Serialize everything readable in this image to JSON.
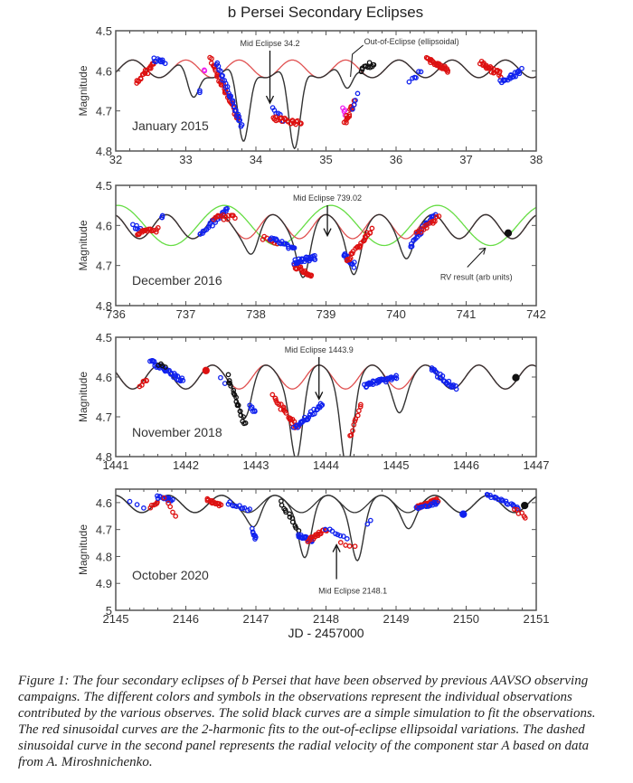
{
  "figure_title": "b Persei Secondary Eclipses",
  "caption": "Figure 1: The four secondary eclipses of b Persei that have been observed by previous AAVSO observing campaigns.  The different colors and symbols in the observations represent the individual observations contributed by the various observes.  The solid black curves are a simple simulation to fit the observations.  The red sinusoidal curves are the 2-harmonic fits to the out-of-eclipse ellipsoidal variations.  The dashed sinusoidal curve in the second panel represents the radial velocity of the component star A based on data from A. Miroshnichenko.",
  "colors": {
    "sim": "#333333",
    "ellip": "#e05050",
    "rv": "#66dd44",
    "obs_red": "#dd1111",
    "obs_blue": "#1122ee",
    "obs_black": "#111111",
    "obs_magenta": "#ee22ee"
  },
  "chart_data": [
    {
      "type": "scatter",
      "panel_label": "January 2015",
      "ylabel": "Magnitude",
      "xlim": [
        32,
        38
      ],
      "ylim": [
        4.5,
        4.8
      ],
      "y_inverted": true,
      "xticks": [
        "32",
        "33",
        "34",
        "35",
        "36",
        "37",
        "38"
      ],
      "yticks": [
        "4.5",
        "4.6",
        "4.7",
        "4.8"
      ],
      "mid_eclipse": {
        "label": "Mid Eclipse 34.2",
        "x": 34.2,
        "y": 4.685
      },
      "annotation": {
        "label": "Out-of-Eclipse (ellipsoidal)",
        "x": 35.35,
        "y": 4.615
      },
      "ellip": {
        "center": 4.595,
        "amp": 0.022,
        "period": 0.76,
        "phase0": 33.0
      },
      "sim_dips": [
        {
          "x": 33.1,
          "depth": 0.085
        },
        {
          "x": 33.82,
          "depth": 0.2
        },
        {
          "x": 34.55,
          "depth": 0.22
        },
        {
          "x": 35.3,
          "depth": 0.07
        }
      ],
      "observations": [
        {
          "color": "obs_red",
          "x0": 32.3,
          "x1": 32.55,
          "y0": 4.63,
          "y1": 4.58,
          "n": 20
        },
        {
          "color": "obs_blue",
          "x0": 32.55,
          "x1": 32.7,
          "y0": 4.57,
          "y1": 4.58,
          "n": 10
        },
        {
          "color": "obs_magenta",
          "x0": 33.25,
          "x1": 33.27,
          "y0": 4.6,
          "y1": 4.6,
          "n": 2
        },
        {
          "color": "obs_blue",
          "x0": 33.2,
          "x1": 33.2,
          "y0": 4.65,
          "y1": 4.65,
          "n": 2
        },
        {
          "color": "obs_red",
          "x0": 33.35,
          "x1": 33.75,
          "y0": 4.57,
          "y1": 4.72,
          "n": 40
        },
        {
          "color": "obs_blue",
          "x0": 33.45,
          "x1": 33.8,
          "y0": 4.58,
          "y1": 4.74,
          "n": 30
        },
        {
          "color": "obs_blue",
          "x0": 34.25,
          "x1": 34.4,
          "y0": 4.69,
          "y1": 4.73,
          "n": 8
        },
        {
          "color": "obs_red",
          "x0": 34.25,
          "x1": 34.65,
          "y0": 4.72,
          "y1": 4.73,
          "n": 25
        },
        {
          "color": "obs_magenta",
          "x0": 35.25,
          "x1": 35.27,
          "y0": 4.69,
          "y1": 4.71,
          "n": 4
        },
        {
          "color": "obs_red",
          "x0": 35.27,
          "x1": 35.4,
          "y0": 4.73,
          "y1": 4.68,
          "n": 15
        },
        {
          "color": "obs_blue",
          "x0": 35.38,
          "x1": 35.45,
          "y0": 4.7,
          "y1": 4.66,
          "n": 4
        },
        {
          "color": "obs_black",
          "x0": 35.5,
          "x1": 35.68,
          "y0": 4.6,
          "y1": 4.58,
          "n": 12
        },
        {
          "color": "obs_blue",
          "x0": 36.2,
          "x1": 36.35,
          "y0": 4.63,
          "y1": 4.6,
          "n": 6
        },
        {
          "color": "obs_red",
          "x0": 36.45,
          "x1": 36.75,
          "y0": 4.57,
          "y1": 4.6,
          "n": 30
        },
        {
          "color": "obs_red",
          "x0": 37.2,
          "x1": 37.5,
          "y0": 4.58,
          "y1": 4.61,
          "n": 25
        },
        {
          "color": "obs_blue",
          "x0": 37.5,
          "x1": 37.78,
          "y0": 4.63,
          "y1": 4.6,
          "n": 20
        }
      ]
    },
    {
      "type": "scatter",
      "panel_label": "December 2016",
      "ylabel": "Magnitude",
      "xlim": [
        736,
        742
      ],
      "ylim": [
        4.5,
        4.8
      ],
      "y_inverted": true,
      "xticks": [
        "736",
        "737",
        "738",
        "739",
        "740",
        "741",
        "742"
      ],
      "yticks": [
        "4.5",
        "4.6",
        "4.7",
        "4.8"
      ],
      "mid_eclipse": {
        "label": "Mid Eclipse 739.02",
        "x": 739.02,
        "y": 4.63
      },
      "annotation": {
        "label": "RV result (arb units)",
        "x": 741.3,
        "y": 4.65
      },
      "ellip": {
        "center": 4.603,
        "amp": 0.03,
        "period": 0.76,
        "phase0": 736.72
      },
      "rv": {
        "center": 4.6,
        "amp": 0.05,
        "period": 1.52,
        "phase0": 737.55
      },
      "sim_dips": [
        {
          "x": 737.95,
          "depth": 0.045
        },
        {
          "x": 738.68,
          "depth": 0.1
        },
        {
          "x": 739.4,
          "depth": 0.09
        },
        {
          "x": 740.15,
          "depth": 0.05
        }
      ],
      "observations": [
        {
          "color": "obs_blue",
          "x0": 736.25,
          "x1": 736.35,
          "y0": 4.6,
          "y1": 4.61,
          "n": 6
        },
        {
          "color": "obs_red",
          "x0": 736.3,
          "x1": 736.6,
          "y0": 4.62,
          "y1": 4.61,
          "n": 20
        },
        {
          "color": "obs_blue",
          "x0": 736.65,
          "x1": 736.68,
          "y0": 4.58,
          "y1": 4.58,
          "n": 3
        },
        {
          "color": "obs_blue",
          "x0": 737.2,
          "x1": 737.6,
          "y0": 4.62,
          "y1": 4.56,
          "n": 25
        },
        {
          "color": "obs_red",
          "x0": 737.4,
          "x1": 737.7,
          "y0": 4.58,
          "y1": 4.58,
          "n": 15
        },
        {
          "color": "obs_red",
          "x0": 738.1,
          "x1": 738.3,
          "y0": 4.63,
          "y1": 4.64,
          "n": 8
        },
        {
          "color": "obs_blue",
          "x0": 738.2,
          "x1": 738.55,
          "y0": 4.63,
          "y1": 4.66,
          "n": 20
        },
        {
          "color": "obs_red",
          "x0": 738.55,
          "x1": 738.8,
          "y0": 4.7,
          "y1": 4.73,
          "n": 20
        },
        {
          "color": "obs_blue",
          "x0": 738.55,
          "x1": 738.85,
          "y0": 4.69,
          "y1": 4.68,
          "n": 30
        },
        {
          "color": "obs_blue",
          "x0": 739.25,
          "x1": 739.4,
          "y0": 4.67,
          "y1": 4.7,
          "n": 15
        },
        {
          "color": "obs_red",
          "x0": 739.3,
          "x1": 739.65,
          "y0": 4.69,
          "y1": 4.61,
          "n": 25
        },
        {
          "color": "obs_blue",
          "x0": 740.2,
          "x1": 740.55,
          "y0": 4.65,
          "y1": 4.57,
          "n": 25
        },
        {
          "color": "obs_red",
          "x0": 740.3,
          "x1": 740.6,
          "y0": 4.62,
          "y1": 4.58,
          "n": 15
        },
        {
          "color": "obs_black",
          "x0": 741.6,
          "x1": 741.6,
          "y0": 4.625,
          "y1": 4.625,
          "n": 1
        }
      ]
    },
    {
      "type": "scatter",
      "panel_label": "November 2018",
      "ylabel": "Magnitude",
      "xlim": [
        1441,
        1447
      ],
      "ylim": [
        4.5,
        4.8
      ],
      "y_inverted": true,
      "xticks": [
        "1441",
        "1442",
        "1443",
        "1444",
        "1445",
        "1446",
        "1447"
      ],
      "yticks": [
        "4.5",
        "4.6",
        "4.7",
        "4.8"
      ],
      "mid_eclipse": {
        "label": "Mid Eclipse 1443.9",
        "x": 1443.9,
        "y": 4.66
      },
      "ellip": {
        "center": 4.6,
        "amp": 0.03,
        "period": 0.76,
        "phase0": 1441.62
      },
      "sim_dips": [
        {
          "x": 1442.85,
          "depth": 0.08
        },
        {
          "x": 1443.58,
          "depth": 0.18
        },
        {
          "x": 1444.3,
          "depth": 0.2
        },
        {
          "x": 1445.05,
          "depth": 0.06
        }
      ],
      "observations": [
        {
          "color": "obs_red",
          "x0": 1441.35,
          "x1": 1441.45,
          "y0": 4.62,
          "y1": 4.61,
          "n": 6
        },
        {
          "color": "obs_blue",
          "x0": 1441.5,
          "x1": 1441.95,
          "y0": 4.56,
          "y1": 4.61,
          "n": 35
        },
        {
          "color": "obs_black",
          "x0": 1441.6,
          "x1": 1441.7,
          "y0": 4.57,
          "y1": 4.57,
          "n": 4
        },
        {
          "color": "obs_red",
          "x0": 1442.3,
          "x1": 1442.3,
          "y0": 4.58,
          "y1": 4.58,
          "n": 1
        },
        {
          "color": "obs_blue",
          "x0": 1442.5,
          "x1": 1442.55,
          "y0": 4.6,
          "y1": 4.62,
          "n": 2
        },
        {
          "color": "obs_black",
          "x0": 1442.6,
          "x1": 1442.85,
          "y0": 4.6,
          "y1": 4.72,
          "n": 20
        },
        {
          "color": "obs_blue",
          "x0": 1442.92,
          "x1": 1443.0,
          "y0": 4.67,
          "y1": 4.69,
          "n": 6
        },
        {
          "color": "obs_red",
          "x0": 1443.25,
          "x1": 1443.6,
          "y0": 4.65,
          "y1": 4.73,
          "n": 25
        },
        {
          "color": "obs_blue",
          "x0": 1443.55,
          "x1": 1443.95,
          "y0": 4.73,
          "y1": 4.67,
          "n": 30
        },
        {
          "color": "obs_red",
          "x0": 1444.35,
          "x1": 1444.5,
          "y0": 4.75,
          "y1": 4.67,
          "n": 10
        },
        {
          "color": "obs_blue",
          "x0": 1444.55,
          "x1": 1445.0,
          "y0": 4.62,
          "y1": 4.6,
          "n": 35
        },
        {
          "color": "obs_blue",
          "x0": 1445.5,
          "x1": 1445.85,
          "y0": 4.58,
          "y1": 4.63,
          "n": 25
        },
        {
          "color": "obs_black",
          "x0": 1446.72,
          "x1": 1446.72,
          "y0": 4.605,
          "y1": 4.605,
          "n": 1
        }
      ]
    },
    {
      "type": "scatter",
      "panel_label": "October 2020",
      "ylabel": "Magnitude",
      "xlabel": "JD - 2457000",
      "xlim": [
        2145,
        2151
      ],
      "ylim": [
        4.55,
        5.0
      ],
      "y_inverted": true,
      "xticks": [
        "2145",
        "2146",
        "2147",
        "2148",
        "2149",
        "2150",
        "2151"
      ],
      "yticks": [
        "4.6",
        "4.7",
        "4.8",
        "4.9",
        "5"
      ],
      "mid_eclipse": {
        "label": "Mid Eclipse 2148.1",
        "x": 2148.15,
        "y": 4.75
      },
      "ellip": {
        "center": 4.605,
        "amp": 0.032,
        "period": 0.76,
        "phase0": 2145.75
      },
      "sim_dips": [
        {
          "x": 2146.98,
          "depth": 0.06
        },
        {
          "x": 2147.7,
          "depth": 0.17
        },
        {
          "x": 2148.45,
          "depth": 0.18
        },
        {
          "x": 2149.18,
          "depth": 0.06
        }
      ],
      "observations": [
        {
          "color": "obs_blue",
          "x0": 2145.2,
          "x1": 2145.4,
          "y0": 4.6,
          "y1": 4.62,
          "n": 3
        },
        {
          "color": "obs_red",
          "x0": 2145.5,
          "x1": 2145.6,
          "y0": 4.62,
          "y1": 4.6,
          "n": 6
        },
        {
          "color": "obs_blue",
          "x0": 2145.6,
          "x1": 2145.8,
          "y0": 4.58,
          "y1": 4.59,
          "n": 15
        },
        {
          "color": "obs_red",
          "x0": 2145.7,
          "x1": 2145.85,
          "y0": 4.58,
          "y1": 4.65,
          "n": 5
        },
        {
          "color": "obs_red",
          "x0": 2146.3,
          "x1": 2146.5,
          "y0": 4.59,
          "y1": 4.61,
          "n": 15
        },
        {
          "color": "obs_blue",
          "x0": 2146.6,
          "x1": 2146.9,
          "y0": 4.6,
          "y1": 4.63,
          "n": 12
        },
        {
          "color": "obs_blue",
          "x0": 2146.95,
          "x1": 2147.0,
          "y0": 4.7,
          "y1": 4.74,
          "n": 8
        },
        {
          "color": "obs_black",
          "x0": 2147.35,
          "x1": 2147.6,
          "y0": 4.6,
          "y1": 4.7,
          "n": 12
        },
        {
          "color": "obs_blue",
          "x0": 2147.6,
          "x1": 2147.8,
          "y0": 4.72,
          "y1": 4.74,
          "n": 20
        },
        {
          "color": "obs_red",
          "x0": 2147.75,
          "x1": 2148.0,
          "y0": 4.74,
          "y1": 4.7,
          "n": 20
        },
        {
          "color": "obs_blue",
          "x0": 2148.0,
          "x1": 2148.3,
          "y0": 4.7,
          "y1": 4.73,
          "n": 8
        },
        {
          "color": "obs_red",
          "x0": 2148.2,
          "x1": 2148.4,
          "y0": 4.75,
          "y1": 4.76,
          "n": 4
        },
        {
          "color": "obs_blue",
          "x0": 2148.6,
          "x1": 2148.65,
          "y0": 4.68,
          "y1": 4.67,
          "n": 2
        },
        {
          "color": "obs_red",
          "x0": 2149.3,
          "x1": 2149.6,
          "y0": 4.62,
          "y1": 4.59,
          "n": 30
        },
        {
          "color": "obs_blue",
          "x0": 2149.3,
          "x1": 2149.6,
          "y0": 4.62,
          "y1": 4.6,
          "n": 15
        },
        {
          "color": "obs_blue",
          "x0": 2149.95,
          "x1": 2149.95,
          "y0": 4.64,
          "y1": 4.64,
          "n": 1
        },
        {
          "color": "obs_blue",
          "x0": 2150.3,
          "x1": 2150.75,
          "y0": 4.57,
          "y1": 4.62,
          "n": 20
        },
        {
          "color": "obs_red",
          "x0": 2150.7,
          "x1": 2150.85,
          "y0": 4.62,
          "y1": 4.66,
          "n": 6
        },
        {
          "color": "obs_black",
          "x0": 2150.82,
          "x1": 2150.82,
          "y0": 4.615,
          "y1": 4.615,
          "n": 1
        }
      ]
    }
  ]
}
